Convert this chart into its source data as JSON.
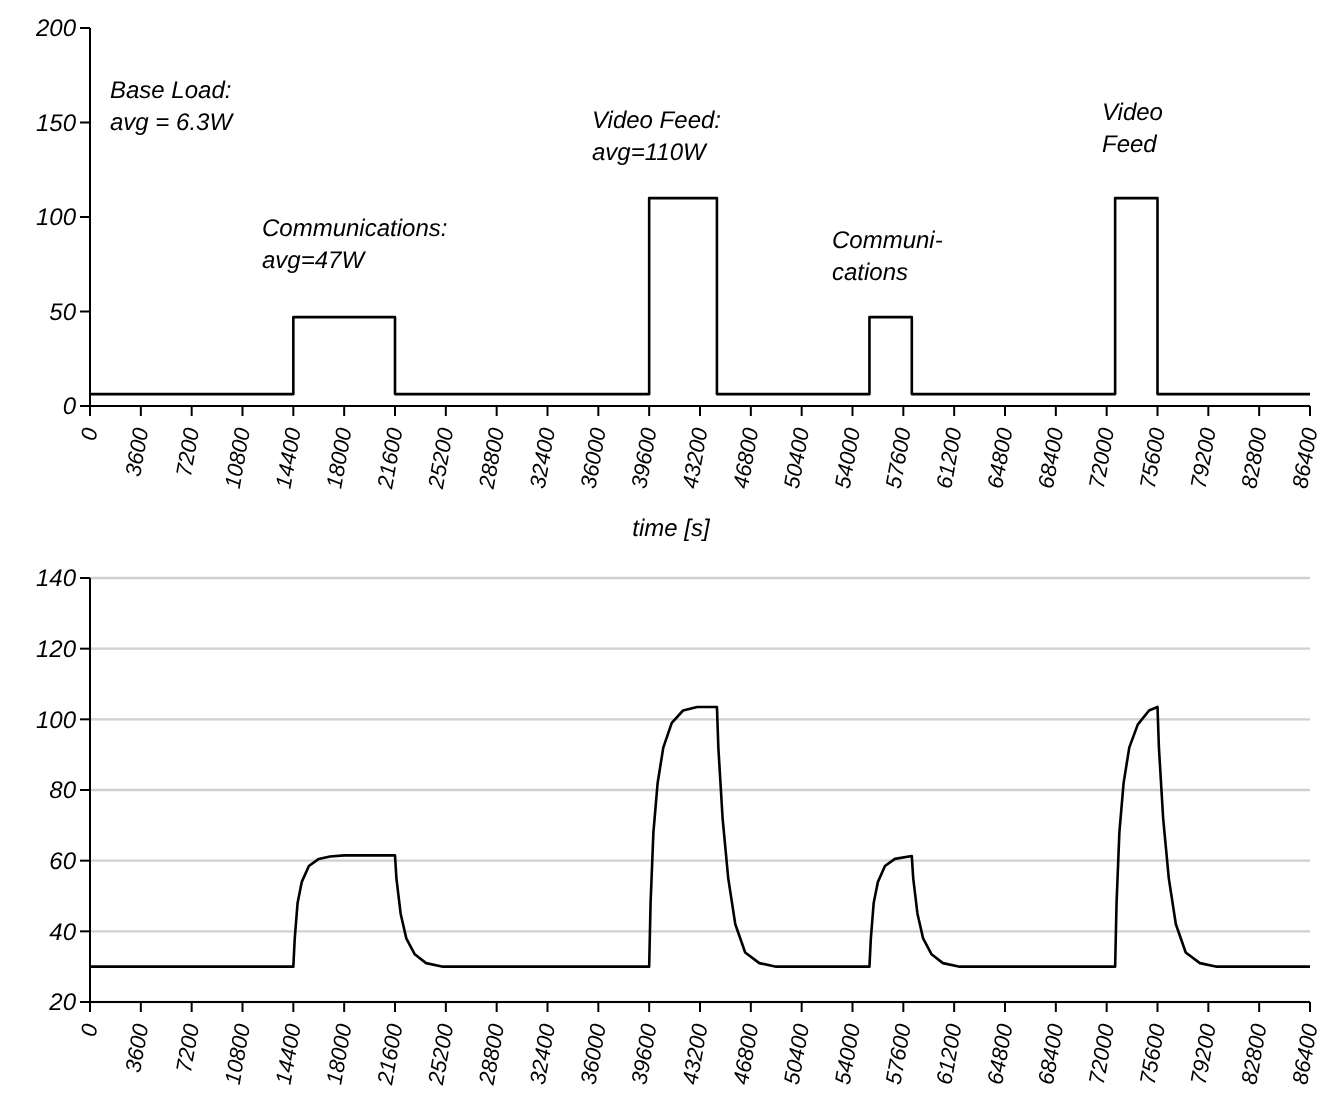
{
  "chart_data": [
    {
      "type": "step",
      "xlabel": "time [s]",
      "x": [
        0,
        14400,
        21600,
        39600,
        44400,
        55200,
        58200,
        72600,
        75600,
        86400
      ],
      "series": [
        {
          "color": "#000000",
          "values": [
            6.3,
            47,
            6.3,
            110,
            6.3,
            47,
            6.3,
            110,
            6.3,
            6.3
          ]
        }
      ],
      "xlim": [
        0,
        86400
      ],
      "xticks": [
        0,
        3600,
        7200,
        10800,
        14400,
        18000,
        21600,
        25200,
        28800,
        32400,
        36000,
        39600,
        43200,
        46800,
        50400,
        54000,
        57600,
        61200,
        64800,
        68400,
        72000,
        75600,
        79200,
        82800,
        86400
      ],
      "ylim": [
        0,
        200
      ],
      "yticks": [
        0,
        50,
        100,
        150,
        200
      ],
      "grid": false,
      "marker": "none",
      "line_style": "solid",
      "annotations": [
        "Base Load:\navg = 6.3W",
        "Communications:\navg=47W",
        "Video Feed:\navg=110W",
        "Communi-\ncations",
        "Video\nFeed"
      ]
    },
    {
      "type": "line",
      "x": [
        0,
        14400,
        14500,
        14700,
        15000,
        15500,
        16200,
        17000,
        18000,
        21600,
        21700,
        22000,
        22400,
        23000,
        23800,
        25000,
        39600,
        39700,
        39900,
        40200,
        40600,
        41200,
        42000,
        43000,
        44400,
        44500,
        44800,
        45200,
        45700,
        46400,
        47400,
        48600,
        55200,
        55300,
        55500,
        55800,
        56300,
        57000,
        58200,
        58300,
        58600,
        59000,
        59600,
        60400,
        61600,
        72600,
        72700,
        72900,
        73200,
        73600,
        74200,
        75000,
        75600,
        75700,
        76000,
        76400,
        76900,
        77600,
        78600,
        79800,
        86400
      ],
      "series": [
        {
          "color": "#000000",
          "values": [
            30,
            30,
            38,
            48,
            54,
            58.5,
            60.5,
            61.2,
            61.5,
            61.5,
            55,
            45,
            38,
            33.5,
            31,
            30,
            30,
            48,
            68,
            82,
            92,
            99,
            102.5,
            103.5,
            103.5,
            92,
            72,
            55,
            42,
            34,
            31,
            30,
            30,
            38,
            48,
            54,
            58.5,
            60.5,
            61.3,
            55,
            45,
            38,
            33.5,
            31,
            30,
            30,
            48,
            68,
            82,
            92,
            98.5,
            102.5,
            103.5,
            92,
            72,
            55,
            42,
            34,
            31,
            30,
            30
          ]
        }
      ],
      "xlim": [
        0,
        86400
      ],
      "xticks": [
        0,
        3600,
        7200,
        10800,
        14400,
        18000,
        21600,
        25200,
        28800,
        32400,
        36000,
        39600,
        43200,
        46800,
        50400,
        54000,
        57600,
        61200,
        64800,
        68400,
        72000,
        75600,
        79200,
        82800,
        86400
      ],
      "ylim": [
        20,
        140
      ],
      "yticks": [
        20,
        40,
        60,
        80,
        100,
        120,
        140
      ],
      "grid": "y",
      "marker": "none",
      "line_style": "solid"
    }
  ]
}
